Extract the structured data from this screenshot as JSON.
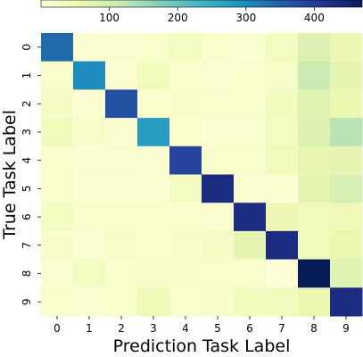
{
  "chart_data": {
    "type": "heatmap",
    "xlabel": "Prediction Task Label",
    "ylabel": "True Task Label",
    "x_categories": [
      "0",
      "1",
      "2",
      "3",
      "4",
      "5",
      "6",
      "7",
      "8",
      "9"
    ],
    "y_categories": [
      "0",
      "1",
      "2",
      "3",
      "4",
      "5",
      "6",
      "7",
      "8",
      "9"
    ],
    "colormap": "YlGnBu",
    "color_range": [
      0,
      470
    ],
    "colorbar": {
      "placement": "top",
      "ticks": [
        100,
        200,
        300,
        400
      ],
      "tick_labels": [
        "100",
        "200",
        "300",
        "400"
      ]
    },
    "values": [
      [
        340,
        10,
        15,
        20,
        35,
        20,
        15,
        35,
        85,
        55
      ],
      [
        20,
        300,
        10,
        45,
        20,
        15,
        20,
        25,
        110,
        70
      ],
      [
        30,
        10,
        370,
        20,
        25,
        20,
        20,
        40,
        80,
        60
      ],
      [
        45,
        25,
        10,
        275,
        20,
        10,
        15,
        35,
        85,
        130
      ],
      [
        20,
        15,
        15,
        15,
        390,
        20,
        20,
        45,
        65,
        70
      ],
      [
        20,
        10,
        10,
        15,
        35,
        430,
        15,
        10,
        70,
        95
      ],
      [
        35,
        20,
        20,
        20,
        20,
        15,
        430,
        55,
        45,
        50
      ],
      [
        25,
        15,
        25,
        20,
        25,
        30,
        70,
        430,
        45,
        60
      ],
      [
        15,
        35,
        20,
        25,
        25,
        20,
        20,
        5,
        470,
        80
      ],
      [
        20,
        15,
        20,
        50,
        20,
        25,
        40,
        40,
        60,
        430
      ]
    ]
  }
}
